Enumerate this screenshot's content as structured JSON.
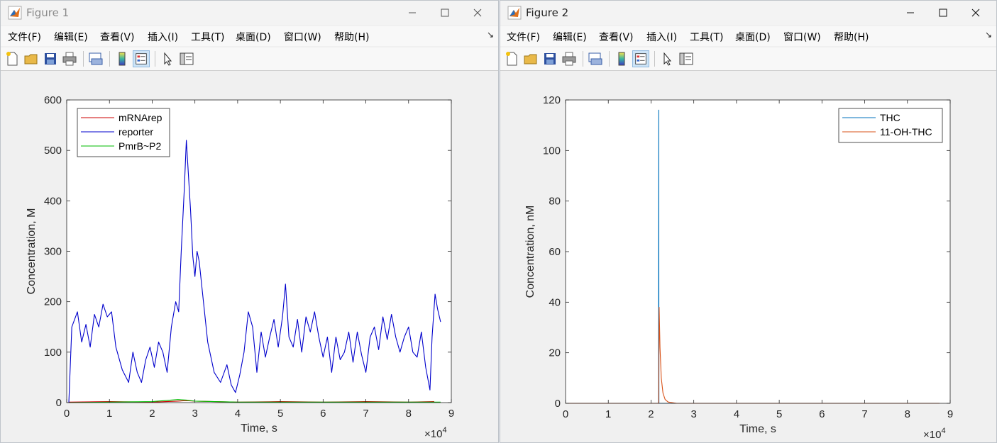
{
  "menus": [
    "文件(F)",
    "编辑(E)",
    "查看(V)",
    "插入(I)",
    "工具(T)",
    "桌面(D)",
    "窗口(W)",
    "帮助(H)"
  ],
  "menu_overflow": "↘",
  "toolbar_icons": [
    "new-figure-icon",
    "open-file-icon",
    "save-icon",
    "print-icon",
    "print-preview-icon",
    "colorbar-icon",
    "legend-icon",
    "edit-plot-arrow-icon",
    "property-inspector-icon"
  ],
  "windows": [
    {
      "title": "Figure 1",
      "active": false,
      "chart_data": {
        "type": "line",
        "xlabel": "Time, s",
        "ylabel": "Concentration, M",
        "xlim": [
          0,
          9
        ],
        "ylim": [
          0,
          600
        ],
        "xticks": [
          0,
          1,
          2,
          3,
          4,
          5,
          6,
          7,
          8,
          9
        ],
        "yticks": [
          0,
          100,
          200,
          300,
          400,
          500,
          600
        ],
        "x_exponent_label": "×10",
        "x_exponent": "4",
        "grid": false,
        "legend_position": "top-left",
        "series": [
          {
            "name": "mRNArep",
            "color": "#cc0000",
            "points": [
              [
                0.05,
                1
              ],
              [
                1,
                2
              ],
              [
                2,
                1
              ],
              [
                2.6,
                3
              ],
              [
                2.8,
                4
              ],
              [
                3,
                3
              ],
              [
                4,
                1
              ],
              [
                5,
                2
              ],
              [
                6,
                1
              ],
              [
                7,
                2
              ],
              [
                8,
                1
              ],
              [
                8.6,
                2
              ]
            ]
          },
          {
            "name": "reporter",
            "color": "#0000cc",
            "points": [
              [
                0.05,
                0
              ],
              [
                0.12,
                150
              ],
              [
                0.25,
                180
              ],
              [
                0.35,
                120
              ],
              [
                0.45,
                155
              ],
              [
                0.55,
                110
              ],
              [
                0.65,
                175
              ],
              [
                0.75,
                150
              ],
              [
                0.85,
                195
              ],
              [
                0.95,
                170
              ],
              [
                1.05,
                180
              ],
              [
                1.15,
                110
              ],
              [
                1.3,
                65
              ],
              [
                1.45,
                40
              ],
              [
                1.55,
                100
              ],
              [
                1.65,
                60
              ],
              [
                1.75,
                40
              ],
              [
                1.85,
                85
              ],
              [
                1.95,
                110
              ],
              [
                2.05,
                70
              ],
              [
                2.15,
                120
              ],
              [
                2.25,
                100
              ],
              [
                2.35,
                60
              ],
              [
                2.45,
                150
              ],
              [
                2.55,
                200
              ],
              [
                2.62,
                180
              ],
              [
                2.68,
                300
              ],
              [
                2.75,
                420
              ],
              [
                2.8,
                520
              ],
              [
                2.85,
                450
              ],
              [
                2.9,
                380
              ],
              [
                2.95,
                290
              ],
              [
                3.0,
                250
              ],
              [
                3.05,
                300
              ],
              [
                3.1,
                280
              ],
              [
                3.2,
                200
              ],
              [
                3.3,
                120
              ],
              [
                3.45,
                60
              ],
              [
                3.6,
                40
              ],
              [
                3.75,
                75
              ],
              [
                3.85,
                35
              ],
              [
                3.95,
                20
              ],
              [
                4.05,
                55
              ],
              [
                4.15,
                100
              ],
              [
                4.25,
                180
              ],
              [
                4.35,
                150
              ],
              [
                4.45,
                60
              ],
              [
                4.55,
                140
              ],
              [
                4.65,
                90
              ],
              [
                4.75,
                130
              ],
              [
                4.85,
                165
              ],
              [
                4.95,
                110
              ],
              [
                5.05,
                170
              ],
              [
                5.12,
                235
              ],
              [
                5.2,
                130
              ],
              [
                5.3,
                110
              ],
              [
                5.4,
                165
              ],
              [
                5.5,
                100
              ],
              [
                5.6,
                170
              ],
              [
                5.7,
                140
              ],
              [
                5.8,
                180
              ],
              [
                5.9,
                130
              ],
              [
                6.0,
                90
              ],
              [
                6.1,
                130
              ],
              [
                6.2,
                60
              ],
              [
                6.3,
                130
              ],
              [
                6.4,
                85
              ],
              [
                6.5,
                100
              ],
              [
                6.6,
                140
              ],
              [
                6.7,
                80
              ],
              [
                6.8,
                140
              ],
              [
                6.9,
                95
              ],
              [
                7.0,
                60
              ],
              [
                7.1,
                130
              ],
              [
                7.2,
                150
              ],
              [
                7.3,
                105
              ],
              [
                7.4,
                170
              ],
              [
                7.5,
                125
              ],
              [
                7.6,
                175
              ],
              [
                7.7,
                130
              ],
              [
                7.8,
                100
              ],
              [
                7.9,
                130
              ],
              [
                8.0,
                150
              ],
              [
                8.1,
                100
              ],
              [
                8.2,
                90
              ],
              [
                8.3,
                140
              ],
              [
                8.4,
                70
              ],
              [
                8.5,
                25
              ],
              [
                8.55,
                130
              ],
              [
                8.62,
                215
              ],
              [
                8.68,
                185
              ],
              [
                8.75,
                160
              ]
            ]
          },
          {
            "name": "PmrB~P2",
            "color": "#00bb00",
            "points": [
              [
                0.05,
                0
              ],
              [
                1,
                1
              ],
              [
                2,
                2
              ],
              [
                2.6,
                6
              ],
              [
                2.8,
                5
              ],
              [
                3.0,
                3
              ],
              [
                4,
                1
              ],
              [
                5,
                1
              ],
              [
                6,
                1
              ],
              [
                7,
                1
              ],
              [
                8,
                1
              ],
              [
                8.75,
                1
              ]
            ]
          }
        ]
      }
    },
    {
      "title": "Figure 2",
      "active": true,
      "chart_data": {
        "type": "line",
        "xlabel": "Time, s",
        "ylabel": "Concentration, nM",
        "xlim": [
          0,
          9
        ],
        "ylim": [
          0,
          120
        ],
        "xticks": [
          0,
          1,
          2,
          3,
          4,
          5,
          6,
          7,
          8,
          9
        ],
        "yticks": [
          0,
          20,
          40,
          60,
          80,
          100,
          120
        ],
        "x_exponent_label": "×10",
        "x_exponent": "4",
        "grid": false,
        "legend_position": "top-right",
        "series": [
          {
            "name": "THC",
            "color": "#0072bd",
            "points": [
              [
                0,
                0
              ],
              [
                2.175,
                0
              ],
              [
                2.18,
                116
              ],
              [
                2.185,
                0
              ],
              [
                8.75,
                0
              ]
            ]
          },
          {
            "name": "11-OH-THC",
            "color": "#d95319",
            "points": [
              [
                0,
                0
              ],
              [
                2.18,
                0
              ],
              [
                2.19,
                38
              ],
              [
                2.21,
                22
              ],
              [
                2.24,
                10
              ],
              [
                2.28,
                4
              ],
              [
                2.33,
                1.5
              ],
              [
                2.4,
                0.5
              ],
              [
                2.6,
                0
              ],
              [
                8.75,
                0
              ]
            ]
          }
        ]
      }
    }
  ]
}
